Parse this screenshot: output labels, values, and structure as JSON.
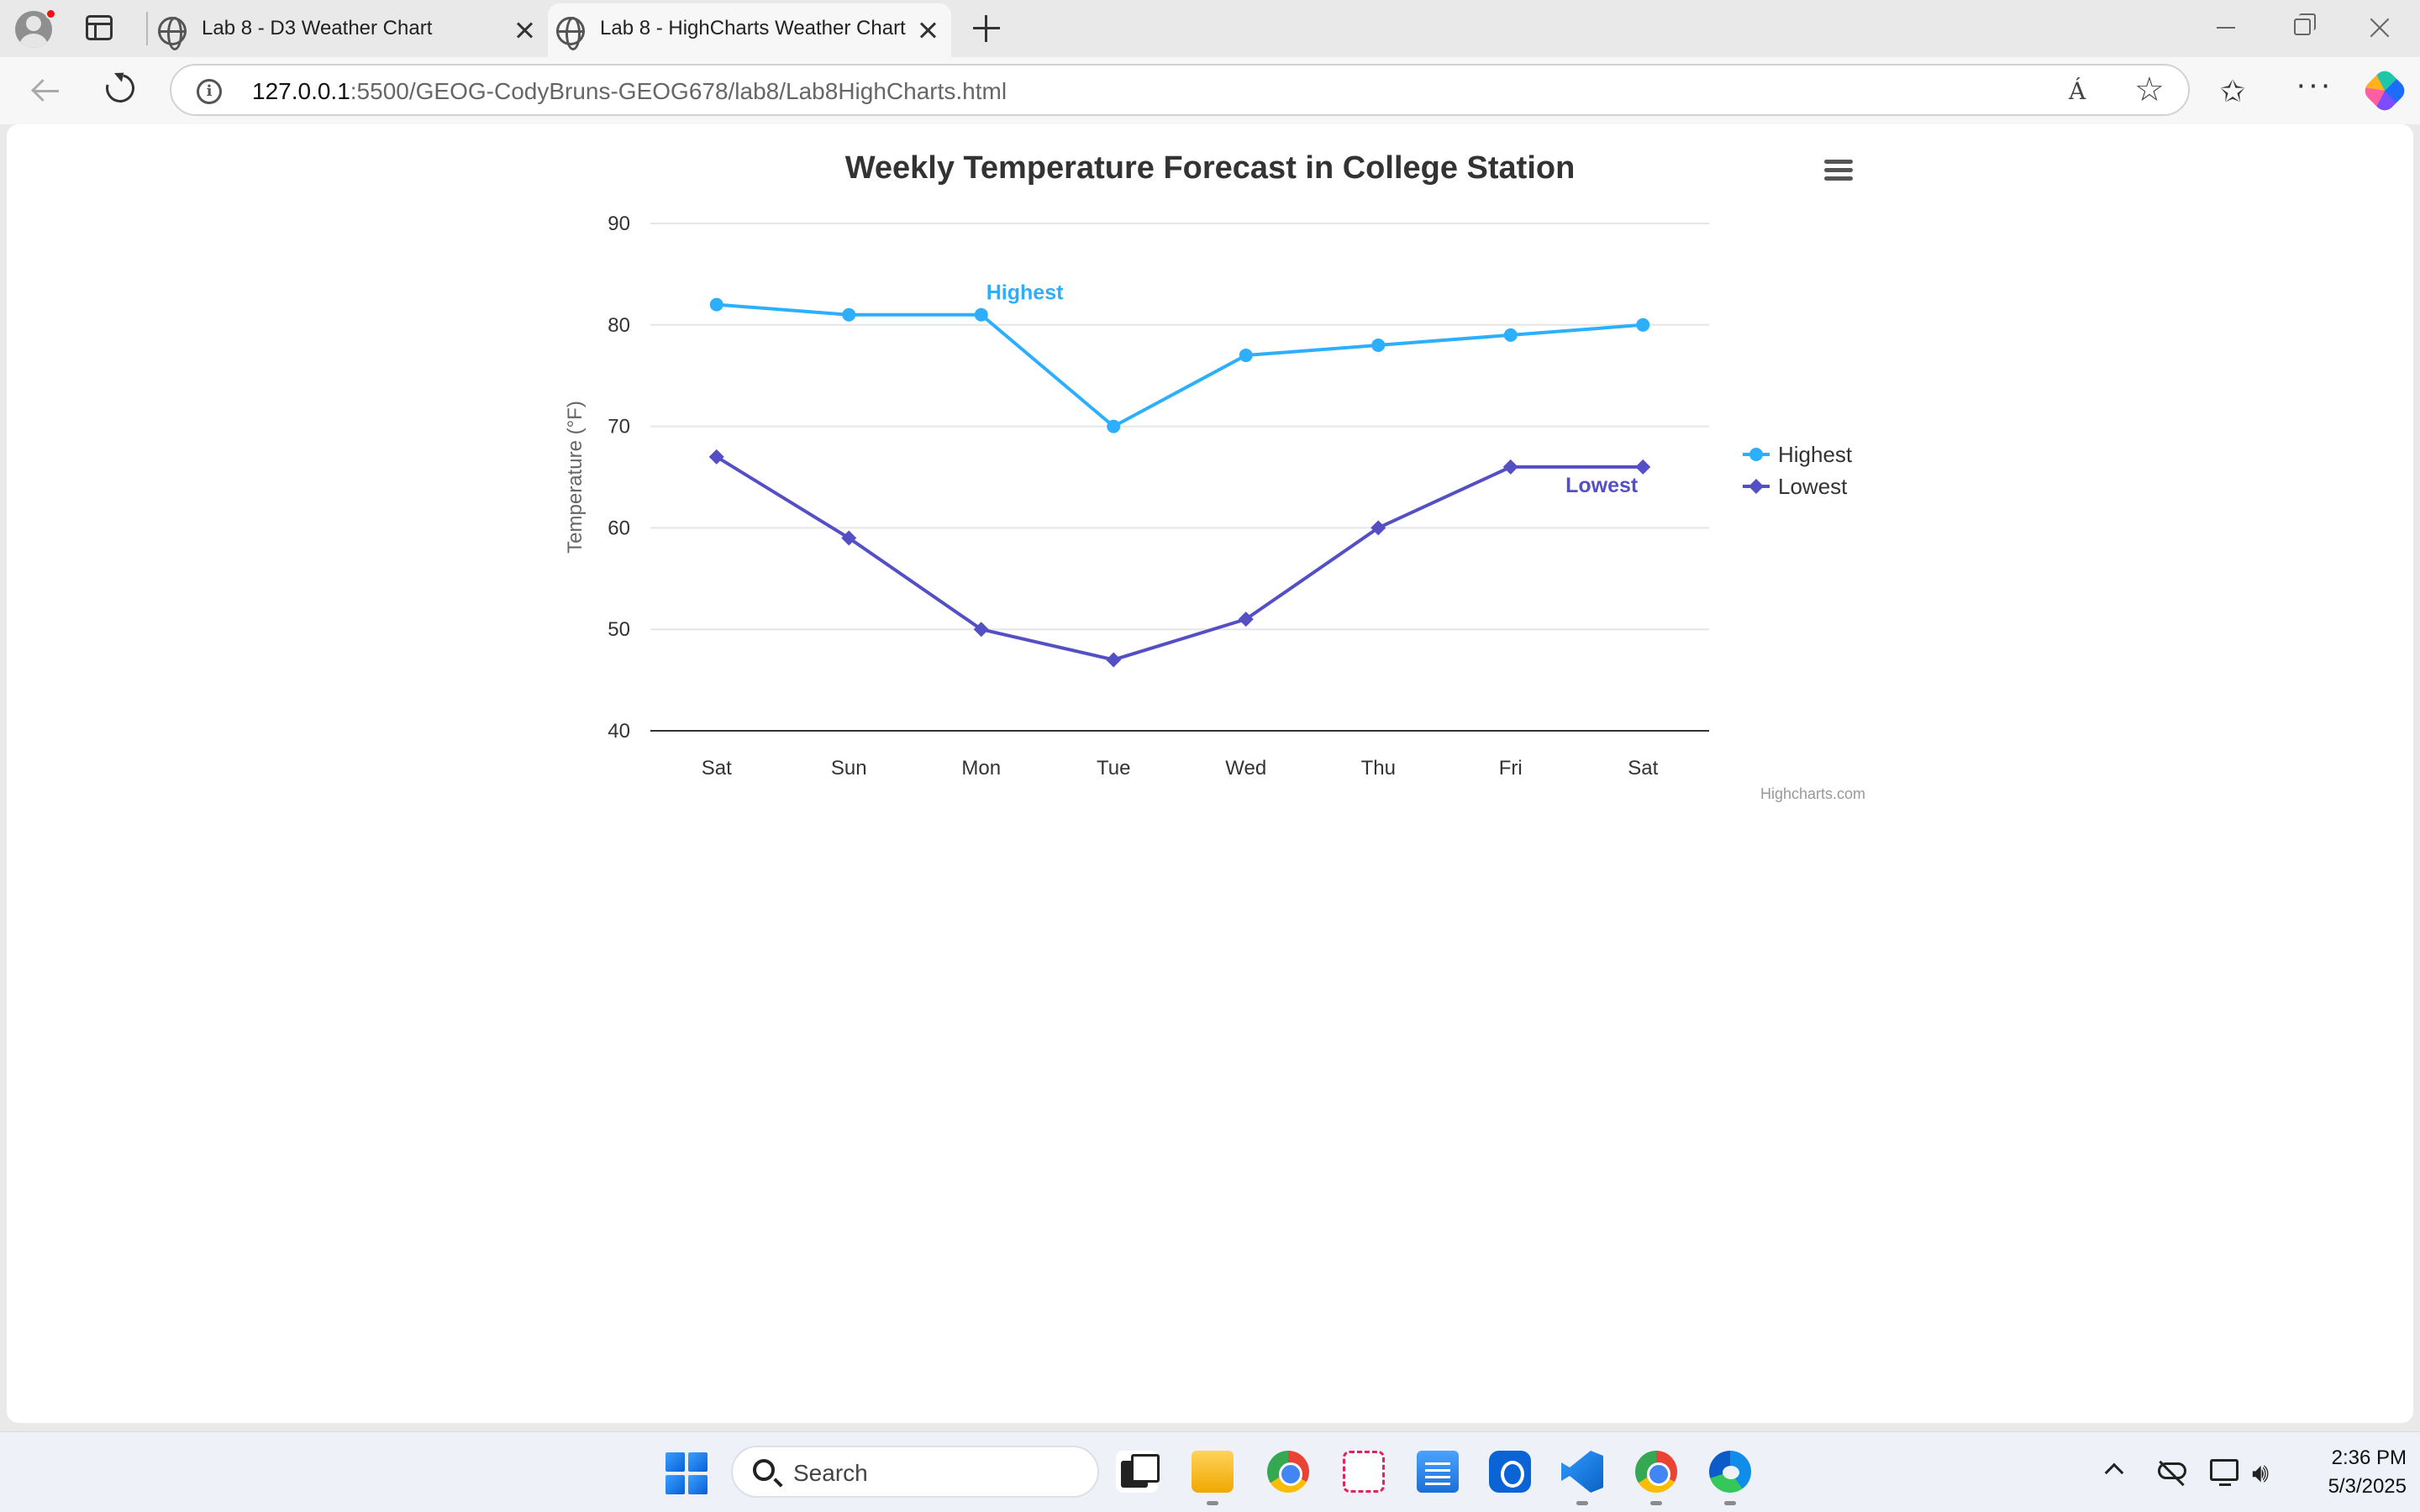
{
  "browser": {
    "tabs": [
      {
        "title": "Lab 8 - D3 Weather Chart",
        "active": false
      },
      {
        "title": "Lab 8 - HighCharts Weather Chart",
        "active": true
      }
    ],
    "url_host": "127.0.0.1",
    "url_rest": ":5500/GEOG-CodyBruns-GEOG678/lab8/Lab8HighCharts.html",
    "icons": {
      "read_aloud": "Á",
      "favorites": "☆",
      "more": "···"
    }
  },
  "chart_data": {
    "type": "line",
    "title": "Weekly Temperature Forecast in College Station",
    "ylabel": "Temperature (°F)",
    "xlabel": "",
    "categories": [
      "Sat",
      "Sun",
      "Mon",
      "Tue",
      "Wed",
      "Thu",
      "Fri",
      "Sat"
    ],
    "ylim": [
      40,
      90
    ],
    "yticks": [
      40,
      50,
      60,
      70,
      80,
      90
    ],
    "grid": true,
    "legend_position": "right",
    "series": [
      {
        "name": "Highest",
        "values": [
          82,
          81,
          81,
          70,
          77,
          78,
          79,
          80
        ],
        "color": "#2caffe",
        "marker": "circle",
        "label_at_index": 2
      },
      {
        "name": "Lowest",
        "values": [
          67,
          59,
          50,
          47,
          51,
          60,
          66,
          66
        ],
        "color": "#544fc5",
        "marker": "diamond",
        "label_at_index": 7
      }
    ],
    "credits": "Highcharts.com"
  },
  "taskbar": {
    "search_label": "Search",
    "time": "2:36 PM",
    "date": "5/3/2025"
  }
}
